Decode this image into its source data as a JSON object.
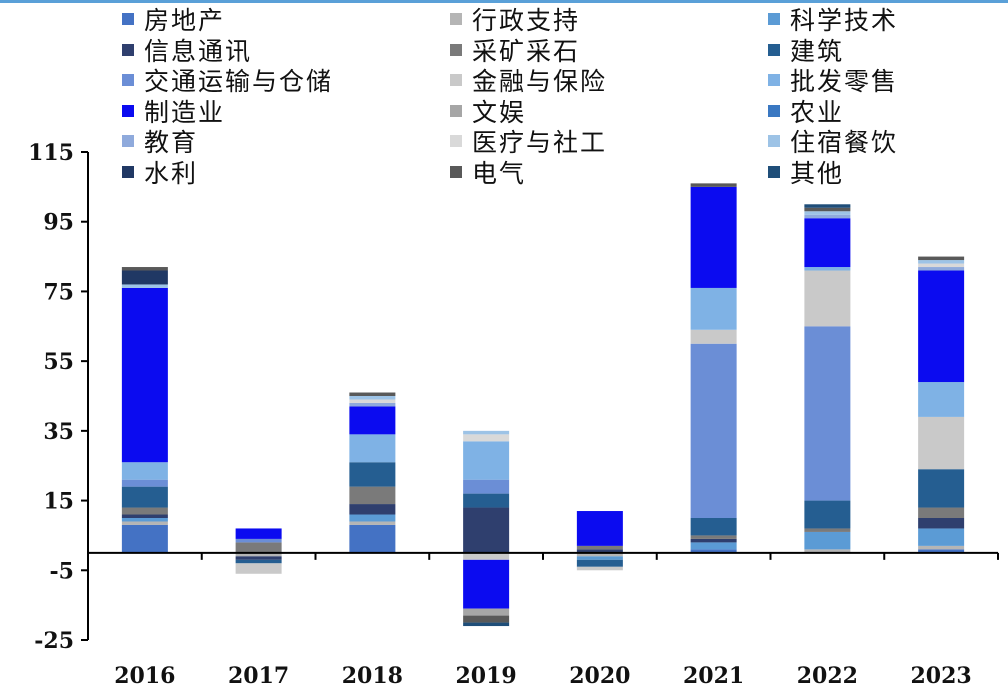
{
  "chart_data": {
    "type": "bar",
    "stacked": true,
    "categories": [
      "2016",
      "2017",
      "2018",
      "2019",
      "2020",
      "2021",
      "2022",
      "2023"
    ],
    "ylim": [
      -25,
      115
    ],
    "yticks": [
      "115",
      "95",
      "75",
      "55",
      "35",
      "15",
      "-5",
      "-25"
    ],
    "ytick_values": [
      115,
      95,
      75,
      55,
      35,
      15,
      -5,
      -25
    ],
    "legend_position": "top",
    "series": [
      {
        "name": "房地产",
        "color": "#4472c4",
        "values": [
          8,
          0,
          8,
          0,
          0,
          1,
          0,
          1
        ]
      },
      {
        "name": "行政支持",
        "color": "#b5b5b5",
        "values": [
          1,
          -1,
          1,
          0,
          -1,
          0,
          1,
          1
        ]
      },
      {
        "name": "科学技术",
        "color": "#5b9bd5",
        "values": [
          1,
          0,
          2,
          0,
          -1,
          2,
          5,
          5
        ]
      },
      {
        "name": "信息通讯",
        "color": "#2f3f6e",
        "values": [
          1,
          -1,
          3,
          13,
          1,
          1,
          0,
          3
        ]
      },
      {
        "name": "采矿采石",
        "color": "#7a7a7a",
        "values": [
          2,
          3,
          5,
          0,
          1,
          1,
          1,
          3
        ]
      },
      {
        "name": "建筑",
        "color": "#255e91",
        "values": [
          6,
          -1,
          7,
          4,
          -2,
          5,
          8,
          11
        ]
      },
      {
        "name": "交通运输与仓储",
        "color": "#6b8ed6",
        "values": [
          2,
          1,
          0,
          4,
          0,
          50,
          50,
          0
        ]
      },
      {
        "name": "金融与保险",
        "color": "#c9c9c9",
        "values": [
          0,
          -3,
          0,
          -2,
          -1,
          4,
          16,
          15
        ]
      },
      {
        "name": "批发零售",
        "color": "#7fb2e5",
        "values": [
          5,
          0,
          8,
          11,
          0,
          12,
          1,
          10
        ]
      },
      {
        "name": "制造业",
        "color": "#0b0bf0",
        "values": [
          50,
          3,
          8,
          -14,
          10,
          29,
          14,
          32
        ]
      },
      {
        "name": "文娱",
        "color": "#a6a6a6",
        "values": [
          0,
          0,
          0,
          -2,
          0,
          0,
          0,
          0
        ]
      },
      {
        "name": "农业",
        "color": "#3a78c2",
        "values": [
          0,
          0,
          0,
          0,
          0,
          0,
          0,
          0
        ]
      },
      {
        "name": "教育",
        "color": "#8faadc",
        "values": [
          0,
          0,
          1,
          0,
          0,
          0,
          1,
          1
        ]
      },
      {
        "name": "医疗与社工",
        "color": "#d9d9d9",
        "values": [
          0,
          0,
          1,
          2,
          0,
          0,
          0,
          1
        ]
      },
      {
        "name": "住宿餐饮",
        "color": "#9dc3e6",
        "values": [
          1,
          0,
          1,
          1,
          0,
          0,
          1,
          1
        ]
      },
      {
        "name": "水利",
        "color": "#203864",
        "values": [
          4,
          0,
          0,
          0,
          0,
          0,
          0,
          0
        ]
      },
      {
        "name": "电气",
        "color": "#595959",
        "values": [
          1,
          0,
          1,
          -2,
          0,
          1,
          1,
          1
        ]
      },
      {
        "name": "其他",
        "color": "#1f4e79",
        "values": [
          0,
          0,
          0,
          -1,
          0,
          0,
          1,
          0
        ]
      }
    ]
  }
}
